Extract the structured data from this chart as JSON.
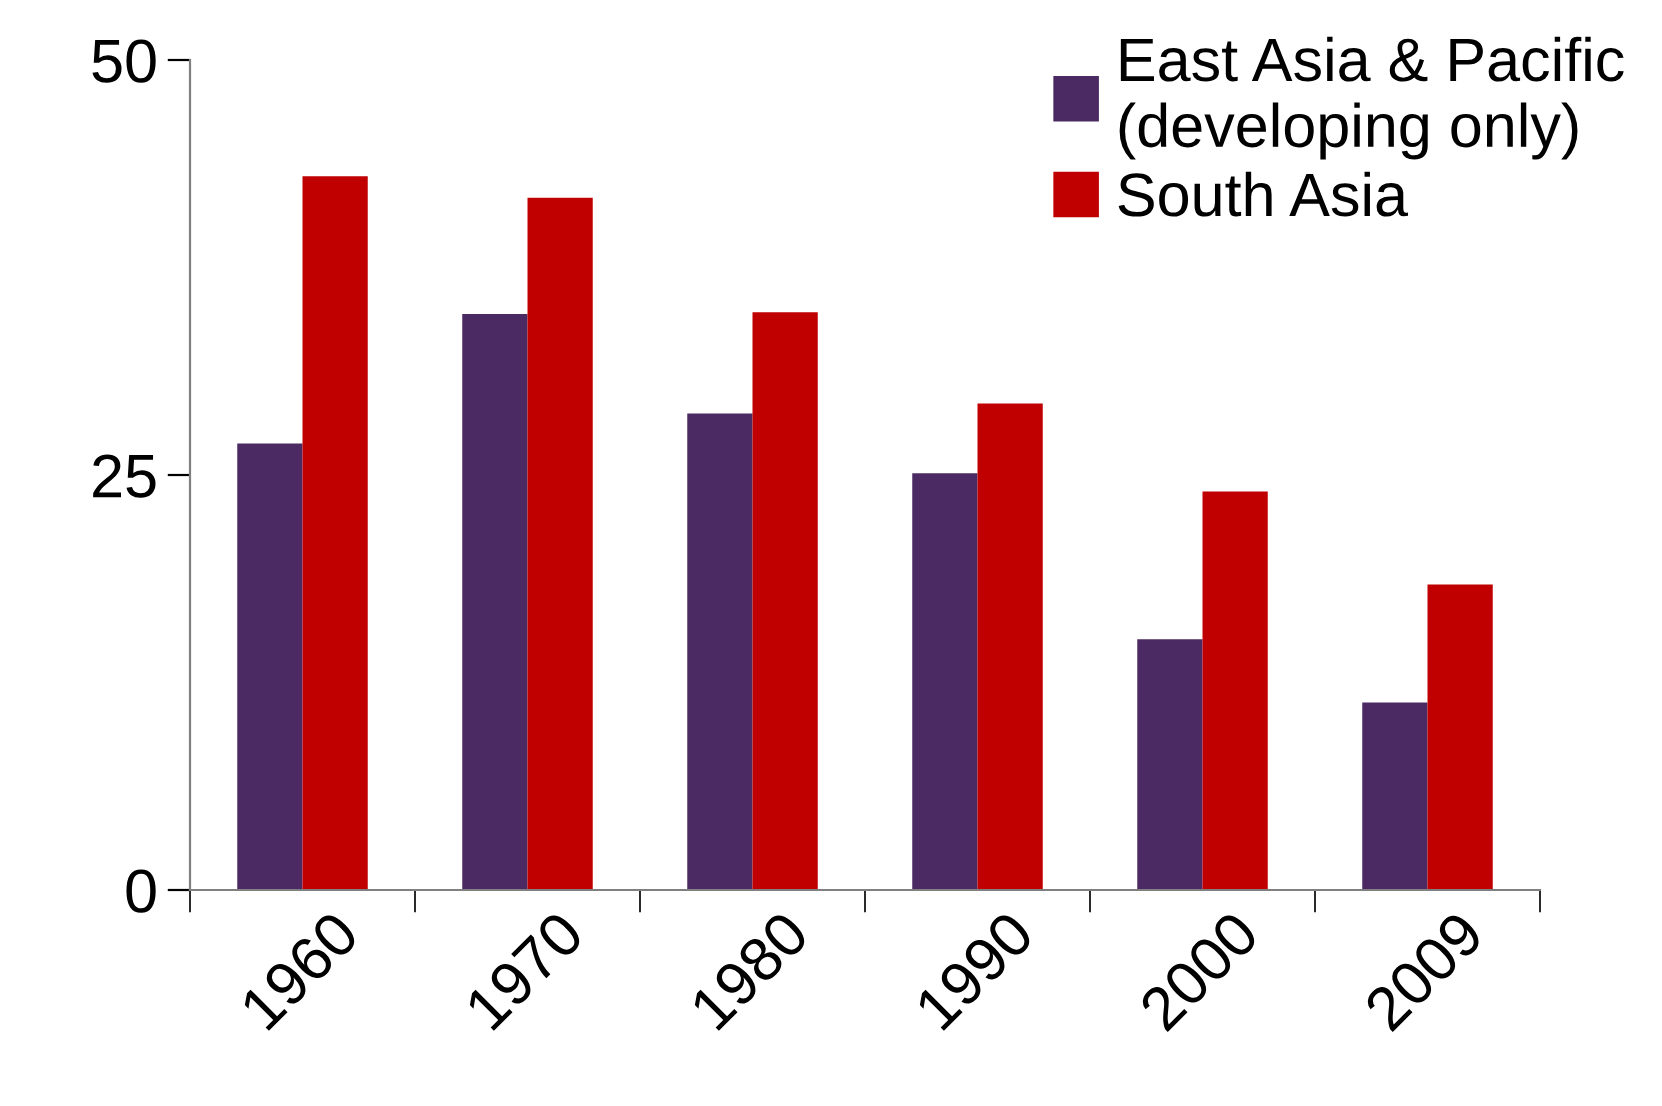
{
  "chart_data": {
    "type": "bar",
    "categories": [
      "1960",
      "1970",
      "1980",
      "1990",
      "2000",
      "2009"
    ],
    "series": [
      {
        "name": "East Asia & Pacific\n(developing only)",
        "color": "#4b2a63",
        "values": [
          26.9,
          34.7,
          28.7,
          25.1,
          15.1,
          11.3
        ]
      },
      {
        "name": "South Asia",
        "color": "#c00000",
        "values": [
          43.0,
          41.7,
          34.8,
          29.3,
          24.0,
          18.4
        ]
      }
    ],
    "ylim": [
      0,
      50
    ],
    "yticks": [
      0,
      25,
      50
    ],
    "grid": false,
    "legend": "top right"
  }
}
